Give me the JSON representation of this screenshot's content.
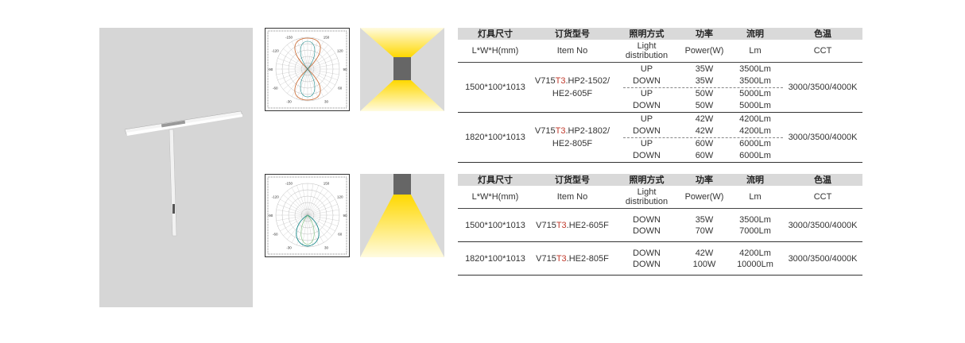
{
  "photometric_diagrams": [
    {
      "angle_labels": [
        "-150",
        "150",
        "-120",
        "120",
        "-90",
        "90",
        "-60",
        "60",
        "-30",
        "30"
      ]
    },
    {
      "angle_labels": [
        "-150",
        "150",
        "-120",
        "120",
        "-90",
        "90",
        "-60",
        "60",
        "-30",
        "30"
      ]
    }
  ],
  "tables": [
    {
      "header": [
        "灯具尺寸",
        "订货型号",
        "照明方式",
        "功率",
        "流明",
        "色温"
      ],
      "subheader": [
        "L*W*H(mm)",
        "Item No",
        "Light distribution",
        "Power(W)",
        "Lm",
        "CCT"
      ],
      "groups": [
        {
          "size": "1500*100*1013",
          "item_no": {
            "prefix": "V715",
            "code": "T3",
            "rest": [
              ".HP2-1502/",
              "HE2-605F"
            ]
          },
          "rows": [
            [
              "UP",
              "35W",
              "3500Lm"
            ],
            [
              "DOWN",
              "35W",
              "3500Lm"
            ],
            [
              "UP",
              "50W",
              "5000Lm"
            ],
            [
              "DOWN",
              "50W",
              "5000Lm"
            ]
          ],
          "cct": "3000/3500/4000K"
        },
        {
          "size": "1820*100*1013",
          "item_no": {
            "prefix": "V715",
            "code": "T3",
            "rest": [
              ".HP2-1802/",
              "HE2-805F"
            ]
          },
          "rows": [
            [
              "UP",
              "42W",
              "4200Lm"
            ],
            [
              "DOWN",
              "42W",
              "4200Lm"
            ],
            [
              "UP",
              "60W",
              "6000Lm"
            ],
            [
              "DOWN",
              "60W",
              "6000Lm"
            ]
          ],
          "cct": "3000/3500/4000K"
        }
      ]
    },
    {
      "header": [
        "灯具尺寸",
        "订货型号",
        "照明方式",
        "功率",
        "流明",
        "色温"
      ],
      "subheader": [
        "L*W*H(mm)",
        "Item No",
        "Light distribution",
        "Power(W)",
        "Lm",
        "CCT"
      ],
      "groups": [
        {
          "size": "1500*100*1013",
          "item_no": {
            "prefix": "V715",
            "code": "T3",
            "rest": [
              ".HE2-605F"
            ]
          },
          "rows": [
            [
              "DOWN",
              "35W",
              "3500Lm"
            ],
            [
              "DOWN",
              "70W",
              "7000Lm"
            ]
          ],
          "cct": "3000/3500/4000K"
        },
        {
          "size": "1820*100*1013",
          "item_no": {
            "prefix": "V715",
            "code": "T3",
            "rest": [
              ".HE2-805F"
            ]
          },
          "rows": [
            [
              "DOWN",
              "42W",
              "4200Lm"
            ],
            [
              "DOWN",
              "100W",
              "10000Lm"
            ]
          ],
          "cct": "3000/3500/4000K"
        }
      ]
    }
  ]
}
